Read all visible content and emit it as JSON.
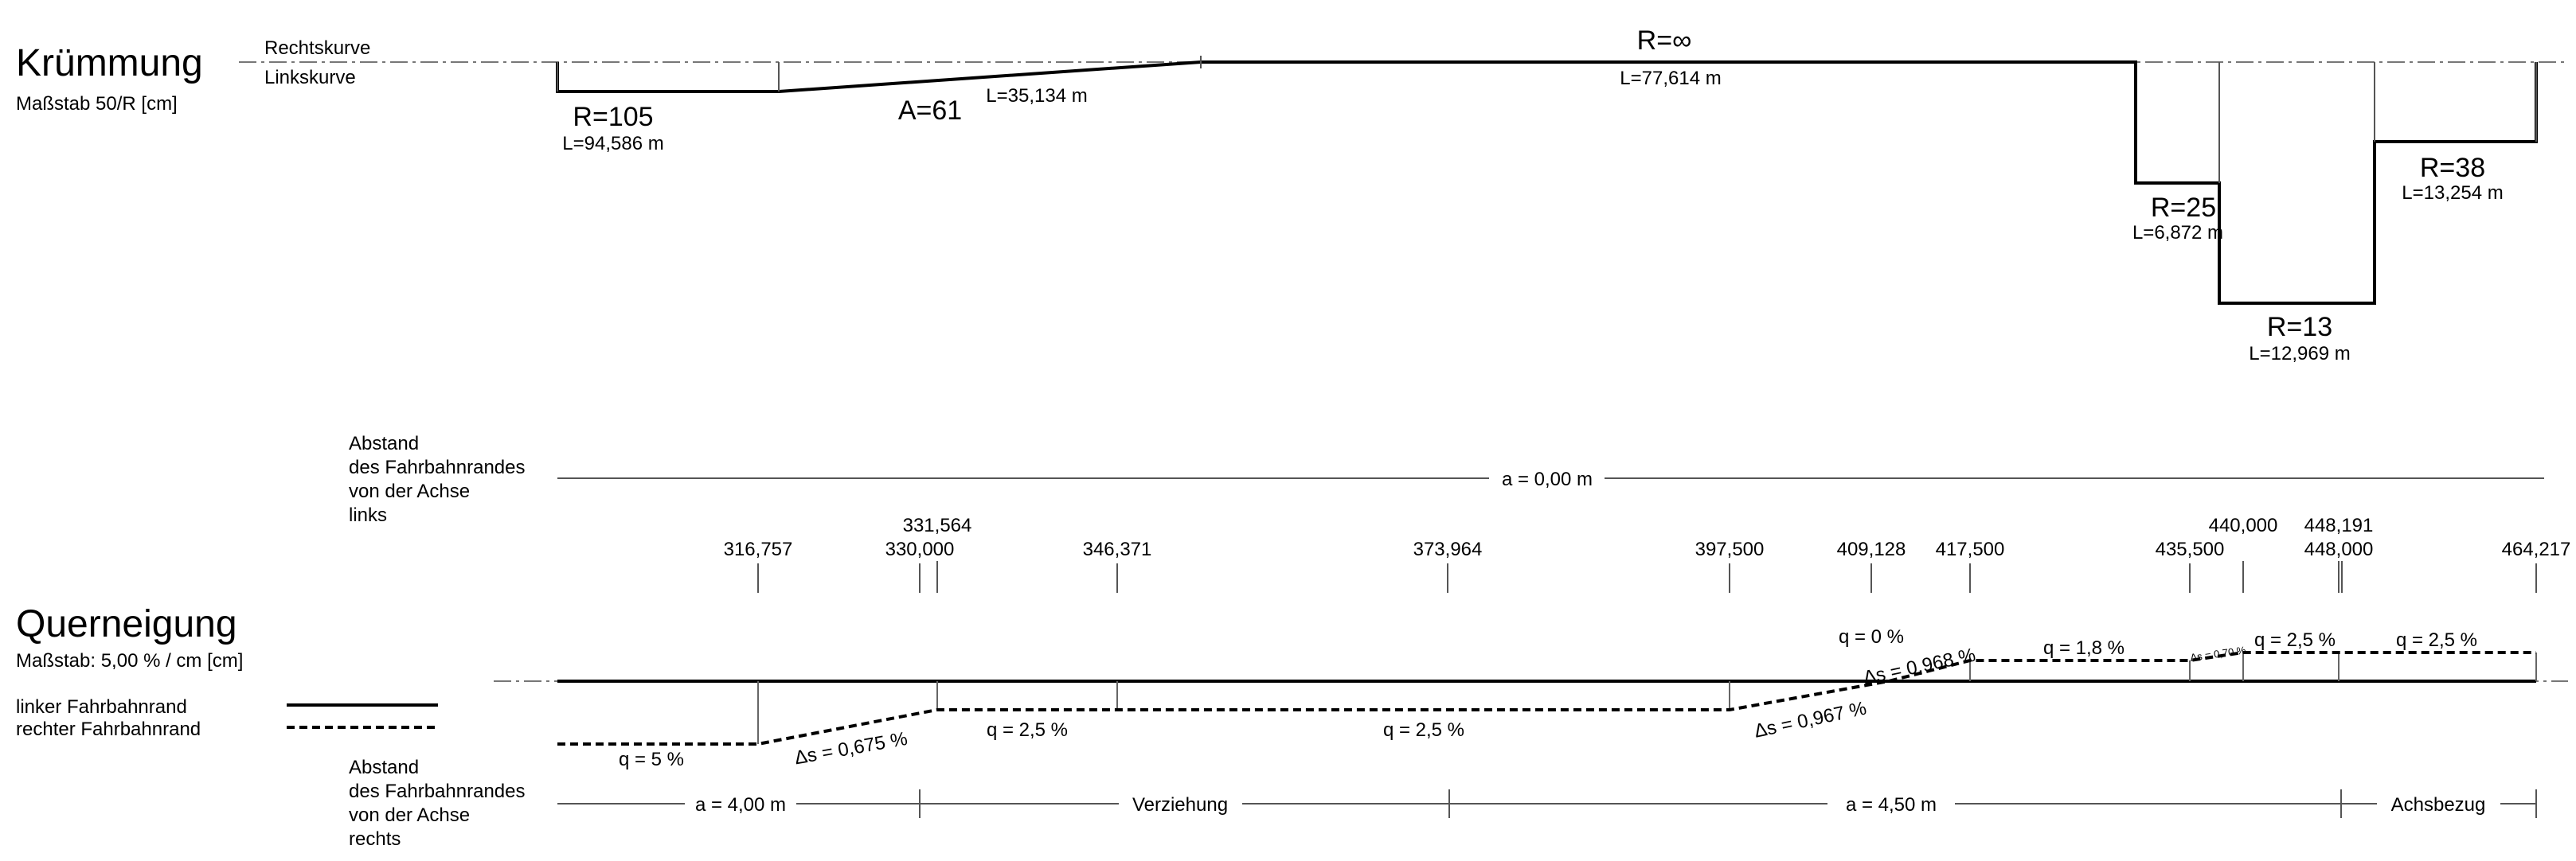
{
  "kruemmung": {
    "title": "Krümmung",
    "scale": "Maßstab 50/R [cm]",
    "rechtskurve": "Rechtskurve",
    "linkskurve": "Linkskurve",
    "labels": [
      {
        "text": "R=105",
        "cls": "big"
      },
      {
        "text": "L=94,586 m",
        "cls": "lbl"
      },
      {
        "text": "A=61",
        "cls": "big"
      },
      {
        "text": "L=35,134 m",
        "cls": "lbl"
      },
      {
        "text": "R=∞",
        "cls": "big"
      },
      {
        "text": "L=77,614 m",
        "cls": "lbl"
      },
      {
        "text": "R=25",
        "cls": "big"
      },
      {
        "text": "L=6,872 m",
        "cls": "lbl"
      },
      {
        "text": "R=13",
        "cls": "big"
      },
      {
        "text": "L=12,969 m",
        "cls": "lbl"
      },
      {
        "text": "R=38",
        "cls": "big"
      },
      {
        "text": "L=13,254 m",
        "cls": "lbl"
      }
    ]
  },
  "abstand_links": {
    "label": [
      "Abstand",
      "des Fahrbahnrandes",
      "von der Achse",
      "links"
    ],
    "value": "a = 0,00 m"
  },
  "stationen": [
    {
      "value": "316,757",
      "row": 2
    },
    {
      "value": "330,000",
      "row": 2
    },
    {
      "value": "331,564",
      "row": 1
    },
    {
      "value": "346,371",
      "row": 2
    },
    {
      "value": "373,964",
      "row": 2
    },
    {
      "value": "397,500",
      "row": 2
    },
    {
      "value": "409,128",
      "row": 2
    },
    {
      "value": "417,500",
      "row": 2
    },
    {
      "value": "435,500",
      "row": 2
    },
    {
      "value": "440,000",
      "row": 1
    },
    {
      "value": "448,191",
      "row": 1
    },
    {
      "value": "448,000",
      "row": 2
    },
    {
      "value": "464,217",
      "row": 2
    }
  ],
  "querneigung": {
    "title": "Querneigung",
    "scale": "Maßstab: 5,00 % / cm [cm]",
    "legend": [
      {
        "text": "linker Fahrbahnrand",
        "style": "solid"
      },
      {
        "text": "rechter Fahrbahnrand",
        "style": "dashed"
      }
    ],
    "labels": [
      {
        "text": "q = 5 %",
        "cls": "lbl"
      },
      {
        "text": "Δs = 0,675 %",
        "cls": "lbl"
      },
      {
        "text": "q = 2,5 %",
        "cls": "lbl"
      },
      {
        "text": "q = 2,5 %",
        "cls": "lbl"
      },
      {
        "text": "Δs = 0,967 %",
        "cls": "lbl"
      },
      {
        "text": "q = 0 %",
        "cls": "lbl"
      },
      {
        "text": "Δs = 0,968 %",
        "cls": "small"
      },
      {
        "text": "q = 1,8 %",
        "cls": "lbl"
      },
      {
        "text": "Δs = 0,70 %",
        "cls": "tiny"
      },
      {
        "text": "q = 2,5 %",
        "cls": "lbl"
      },
      {
        "text": "q = 2,5 %",
        "cls": "lbl"
      }
    ]
  },
  "abstand_rechts": {
    "label": [
      "Abstand",
      "des Fahrbahnrandes",
      "von der Achse",
      "rechts"
    ],
    "segments": [
      "a = 4,00 m",
      "Verziehung",
      "a = 4,50 m",
      "Achsbezug"
    ]
  }
}
